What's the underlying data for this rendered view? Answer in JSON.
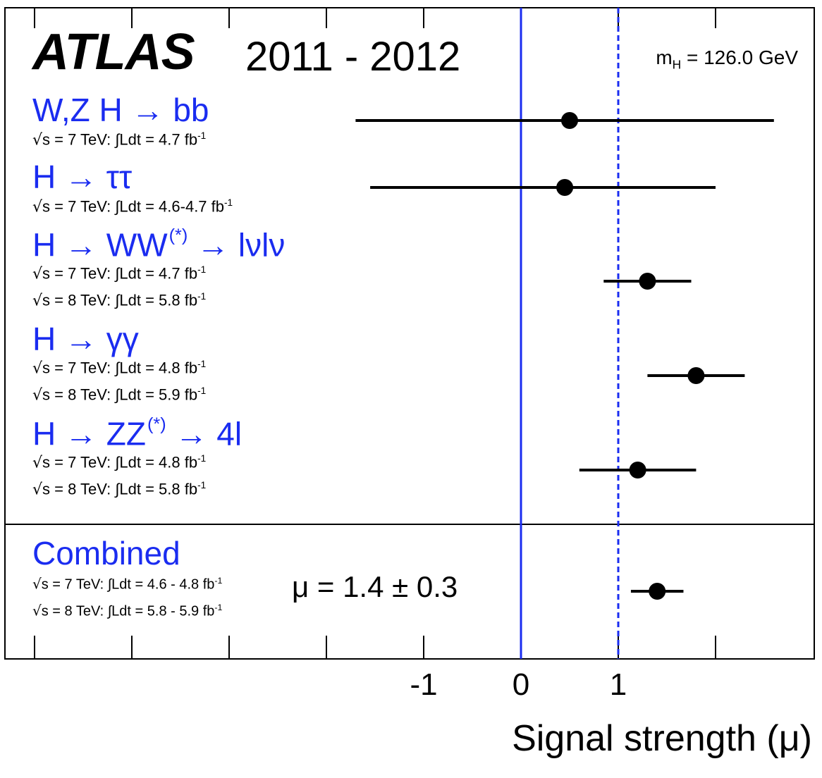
{
  "header": {
    "experiment": "ATLAS",
    "years": "2011 - 2012",
    "mass_label": "m",
    "mass_sub": "H",
    "mass_value": " = 126.0 GeV"
  },
  "combined_result": "μ = 1.4 ± 0.3",
  "chart_data": {
    "type": "scatter",
    "title": "",
    "xlabel": "Signal strength (μ)",
    "xlim": [
      -1.25,
      3.0
    ],
    "x_ticks": [
      -1,
      0,
      1
    ],
    "x_tick_labels": [
      "-1",
      "0",
      "1"
    ],
    "reference_lines": [
      {
        "x": 0,
        "style": "solid",
        "color": "#1a2cf0"
      },
      {
        "x": 1,
        "style": "dashed",
        "color": "#1a2cf0"
      }
    ],
    "series": [
      {
        "channel": "W,Z H → bb",
        "value": 0.5,
        "err_low": 2.2,
        "err_high": 2.1,
        "lumi": [
          {
            "energy": "7 TeV",
            "int_lumi": "4.7"
          }
        ]
      },
      {
        "channel": "H → ττ",
        "value": 0.45,
        "err_low": 2.0,
        "err_high": 1.55,
        "lumi": [
          {
            "energy": "7 TeV",
            "int_lumi": "4.6-4.7"
          }
        ]
      },
      {
        "channel": "H → WW",
        "channel_sup": "(*)",
        "channel_tail": " → lνlν",
        "value": 1.3,
        "err_low": 0.45,
        "err_high": 0.45,
        "lumi": [
          {
            "energy": "7 TeV",
            "int_lumi": "4.7"
          },
          {
            "energy": "8 TeV",
            "int_lumi": "5.8"
          }
        ]
      },
      {
        "channel": "H → γγ",
        "value": 1.8,
        "err_low": 0.5,
        "err_high": 0.5,
        "lumi": [
          {
            "energy": "7 TeV",
            "int_lumi": "4.8"
          },
          {
            "energy": "8 TeV",
            "int_lumi": "5.9"
          }
        ]
      },
      {
        "channel": "H → ZZ",
        "channel_sup": "(*)",
        "channel_tail": " → 4l",
        "value": 1.2,
        "err_low": 0.6,
        "err_high": 0.6,
        "lumi": [
          {
            "energy": "7 TeV",
            "int_lumi": "4.8"
          },
          {
            "energy": "8 TeV",
            "int_lumi": "5.8"
          }
        ]
      }
    ],
    "combined": {
      "channel": "Combined",
      "value": 1.4,
      "err_low": 0.27,
      "err_high": 0.27,
      "lumi": [
        {
          "energy": "7 TeV",
          "int_lumi": "4.6 - 4.8"
        },
        {
          "energy": "8 TeV",
          "int_lumi": "5.8 - 5.9"
        }
      ]
    }
  }
}
